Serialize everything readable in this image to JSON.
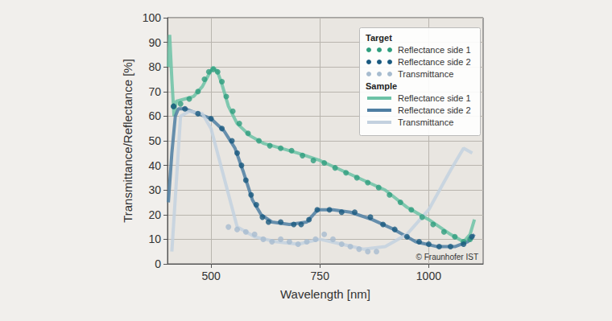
{
  "chart_data": {
    "type": "line",
    "x_label": "Wavelength [nm]",
    "y_label": "Transmittance/Reflectance [%]",
    "xlim": [
      400,
      1125
    ],
    "xticks": [
      500,
      750,
      1000
    ],
    "ylim": [
      0,
      100
    ],
    "yticks": [
      0,
      10,
      20,
      30,
      40,
      50,
      60,
      70,
      80,
      90,
      100
    ],
    "grid": true,
    "legend": "top-right",
    "annotations": [
      "© Fraunhofer IST"
    ],
    "series": [
      {
        "group": "Target",
        "name": "Reflectance side 1",
        "color": "#2f9e7e",
        "marker": "circle",
        "line_style": "none",
        "x": [
          414,
          430,
          450,
          470,
          485,
          495,
          505,
          515,
          525,
          535,
          550,
          565,
          585,
          610,
          635,
          660,
          685,
          710,
          735,
          760,
          785,
          810,
          835,
          860,
          885,
          910,
          935,
          960,
          985,
          1010,
          1035,
          1060,
          1080,
          1095
        ],
        "values": [
          64,
          65,
          67,
          70,
          75,
          78,
          79,
          78,
          74,
          68,
          62,
          57,
          53,
          50,
          48,
          47,
          46,
          44,
          42,
          41,
          39,
          37,
          35,
          33,
          31,
          28,
          25,
          22,
          19,
          16,
          13,
          11,
          9,
          10
        ]
      },
      {
        "group": "Target",
        "name": "Reflectance side 2",
        "color": "#1a5a80",
        "marker": "circle",
        "line_style": "none",
        "x": [
          414,
          440,
          470,
          500,
          525,
          548,
          560,
          570,
          580,
          592,
          604,
          618,
          632,
          660,
          690,
          707,
          725,
          744,
          772,
          800,
          830,
          866,
          895,
          922,
          950,
          978,
          1000,
          1024,
          1050,
          1080,
          1099
        ],
        "values": [
          64,
          63,
          61,
          59,
          55,
          50,
          45,
          40,
          34,
          28,
          24,
          19,
          17,
          17,
          16,
          16,
          18,
          22,
          22,
          21,
          21,
          19,
          16,
          14,
          11,
          9,
          8,
          7,
          7,
          8,
          11
        ]
      },
      {
        "group": "Target",
        "name": "Transmittance",
        "color": "#a7bccf",
        "marker": "circle",
        "line_style": "none",
        "x": [
          540,
          560,
          580,
          600,
          620,
          640,
          660,
          680,
          700,
          720,
          740,
          760,
          780,
          800,
          820,
          840,
          860,
          880
        ],
        "values": [
          15,
          14,
          13,
          12,
          10,
          9,
          10,
          9,
          8,
          9,
          10,
          12,
          10,
          8,
          7,
          6,
          5,
          5
        ]
      },
      {
        "group": "Sample",
        "name": "Reflectance side 1",
        "color": "#6cc2a6",
        "marker": "none",
        "line_style": "solid",
        "x": [
          402,
          405,
          410,
          415,
          420,
          440,
          460,
          480,
          495,
          505,
          515,
          525,
          540,
          560,
          590,
          620,
          660,
          700,
          750,
          800,
          850,
          900,
          950,
          1000,
          1050,
          1080,
          1095,
          1105
        ],
        "values": [
          80,
          93,
          75,
          60,
          66,
          67,
          68,
          72,
          77,
          80,
          78,
          73,
          64,
          57,
          52,
          49,
          47,
          45,
          42,
          38,
          34,
          30,
          23,
          18,
          12,
          9,
          12,
          18
        ]
      },
      {
        "group": "Sample",
        "name": "Reflectance side 2",
        "color": "#4e7ea2",
        "marker": "none",
        "line_style": "solid",
        "x": [
          402,
          410,
          418,
          425,
          440,
          470,
          500,
          530,
          555,
          575,
          595,
          615,
          640,
          680,
          720,
          745,
          780,
          820,
          870,
          920,
          970,
          1020,
          1060,
          1090,
          1105
        ],
        "values": [
          25,
          45,
          60,
          63,
          63,
          61,
          59,
          54,
          47,
          37,
          26,
          20,
          17,
          16,
          17,
          22,
          22,
          21,
          18,
          14,
          9,
          7,
          7,
          9,
          12
        ]
      },
      {
        "group": "Sample",
        "name": "Transmittance",
        "color": "#c3d1df",
        "marker": "none",
        "line_style": "solid",
        "x": [
          410,
          430,
          450,
          480,
          500,
          530,
          560,
          600,
          650,
          700,
          750,
          800,
          850,
          900,
          950,
          1000,
          1050,
          1080,
          1100
        ],
        "values": [
          5,
          60,
          62,
          61,
          55,
          35,
          15,
          11,
          9,
          8,
          10,
          8,
          6,
          7,
          12,
          22,
          38,
          47,
          45
        ]
      }
    ]
  }
}
